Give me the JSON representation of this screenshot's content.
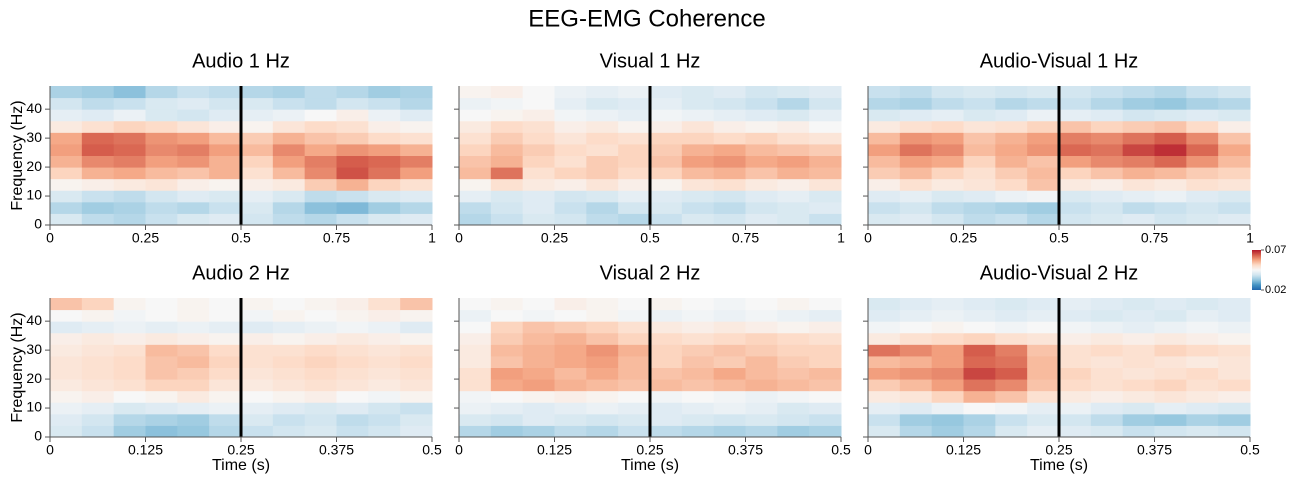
{
  "title": "EEG-EMG Coherence",
  "colorbar": {
    "clim": [
      0.02,
      0.07
    ],
    "ticks": [
      0.07,
      0.02
    ],
    "colors": [
      "#2166ac",
      "#4393c3",
      "#92c5de",
      "#d1e5f0",
      "#f7f7f7",
      "#fddbc7",
      "#f4a582",
      "#d6604d",
      "#b2182b"
    ]
  },
  "chart_data": [
    {
      "type": "heatmap",
      "title": "Audio 1 Hz",
      "ylabel": "Frequency (Hz)",
      "show_ytick_labels": true,
      "xlim": [
        0,
        1
      ],
      "xticks": [
        0,
        0.25,
        0.5,
        0.75,
        1
      ],
      "ylim": [
        0,
        48
      ],
      "yticks": [
        0,
        10,
        20,
        30,
        40
      ],
      "vline": 0.5,
      "values": [
        [
          0.04,
          0.037,
          0.036,
          0.038,
          0.04,
          0.041,
          0.039,
          0.037,
          0.036,
          0.038,
          0.04,
          0.041
        ],
        [
          0.036,
          0.034,
          0.035,
          0.037,
          0.036,
          0.038,
          0.04,
          0.036,
          0.032,
          0.031,
          0.034,
          0.036
        ],
        [
          0.04,
          0.038,
          0.037,
          0.039,
          0.041,
          0.04,
          0.042,
          0.04,
          0.037,
          0.038,
          0.04,
          0.041
        ],
        [
          0.046,
          0.047,
          0.048,
          0.049,
          0.047,
          0.046,
          0.047,
          0.048,
          0.053,
          0.056,
          0.052,
          0.05
        ],
        [
          0.052,
          0.056,
          0.057,
          0.055,
          0.054,
          0.056,
          0.05,
          0.055,
          0.06,
          0.065,
          0.062,
          0.058
        ],
        [
          0.056,
          0.06,
          0.061,
          0.058,
          0.059,
          0.056,
          0.052,
          0.058,
          0.061,
          0.064,
          0.063,
          0.061
        ],
        [
          0.058,
          0.064,
          0.063,
          0.06,
          0.061,
          0.058,
          0.055,
          0.06,
          0.057,
          0.059,
          0.058,
          0.056
        ],
        [
          0.057,
          0.063,
          0.062,
          0.059,
          0.058,
          0.055,
          0.053,
          0.056,
          0.054,
          0.053,
          0.051,
          0.05
        ],
        [
          0.048,
          0.05,
          0.052,
          0.051,
          0.049,
          0.047,
          0.046,
          0.049,
          0.051,
          0.05,
          0.047,
          0.046
        ],
        [
          0.042,
          0.041,
          0.043,
          0.04,
          0.039,
          0.041,
          0.042,
          0.043,
          0.045,
          0.047,
          0.043,
          0.041
        ],
        [
          0.039,
          0.037,
          0.038,
          0.04,
          0.041,
          0.039,
          0.04,
          0.038,
          0.037,
          0.039,
          0.038,
          0.036
        ],
        [
          0.035,
          0.034,
          0.032,
          0.036,
          0.038,
          0.037,
          0.036,
          0.035,
          0.037,
          0.036,
          0.034,
          0.035
        ]
      ]
    },
    {
      "type": "heatmap",
      "title": "Visual 1 Hz",
      "show_ytick_labels": false,
      "xlim": [
        0,
        1
      ],
      "xticks": [
        0,
        0.25,
        0.5,
        0.75,
        1
      ],
      "ylim": [
        0,
        48
      ],
      "yticks": [
        0,
        10,
        20,
        30,
        40
      ],
      "vline": 0.5,
      "values": [
        [
          0.036,
          0.038,
          0.04,
          0.039,
          0.037,
          0.036,
          0.038,
          0.04,
          0.039,
          0.041,
          0.04,
          0.038
        ],
        [
          0.037,
          0.039,
          0.041,
          0.038,
          0.036,
          0.039,
          0.04,
          0.038,
          0.037,
          0.039,
          0.04,
          0.041
        ],
        [
          0.042,
          0.04,
          0.041,
          0.039,
          0.04,
          0.042,
          0.041,
          0.04,
          0.039,
          0.041,
          0.042,
          0.04
        ],
        [
          0.046,
          0.05,
          0.048,
          0.047,
          0.049,
          0.047,
          0.046,
          0.049,
          0.05,
          0.048,
          0.047,
          0.049
        ],
        [
          0.055,
          0.062,
          0.05,
          0.052,
          0.053,
          0.051,
          0.052,
          0.055,
          0.056,
          0.054,
          0.056,
          0.055
        ],
        [
          0.054,
          0.056,
          0.052,
          0.05,
          0.053,
          0.052,
          0.054,
          0.058,
          0.059,
          0.057,
          0.058,
          0.056
        ],
        [
          0.052,
          0.055,
          0.053,
          0.051,
          0.05,
          0.052,
          0.053,
          0.056,
          0.057,
          0.055,
          0.054,
          0.053
        ],
        [
          0.05,
          0.053,
          0.051,
          0.049,
          0.051,
          0.05,
          0.052,
          0.052,
          0.051,
          0.052,
          0.05,
          0.049
        ],
        [
          0.048,
          0.051,
          0.05,
          0.047,
          0.048,
          0.046,
          0.047,
          0.049,
          0.047,
          0.046,
          0.047,
          0.045
        ],
        [
          0.045,
          0.046,
          0.047,
          0.044,
          0.043,
          0.042,
          0.044,
          0.043,
          0.042,
          0.041,
          0.04,
          0.042
        ],
        [
          0.043,
          0.044,
          0.045,
          0.042,
          0.04,
          0.041,
          0.042,
          0.04,
          0.039,
          0.038,
          0.036,
          0.039
        ],
        [
          0.046,
          0.047,
          0.045,
          0.043,
          0.042,
          0.043,
          0.041,
          0.04,
          0.041,
          0.039,
          0.04,
          0.041
        ]
      ]
    },
    {
      "type": "heatmap",
      "title": "Audio-Visual 1 Hz",
      "show_ytick_labels": false,
      "xlim": [
        0,
        1
      ],
      "xticks": [
        0,
        0.25,
        0.5,
        0.75,
        1
      ],
      "ylim": [
        0,
        48
      ],
      "yticks": [
        0,
        10,
        20,
        30,
        40
      ],
      "vline": 0.5,
      "values": [
        [
          0.04,
          0.041,
          0.039,
          0.037,
          0.038,
          0.036,
          0.039,
          0.04,
          0.041,
          0.039,
          0.04,
          0.041
        ],
        [
          0.038,
          0.039,
          0.037,
          0.036,
          0.035,
          0.034,
          0.038,
          0.039,
          0.037,
          0.038,
          0.039,
          0.038
        ],
        [
          0.041,
          0.042,
          0.04,
          0.041,
          0.043,
          0.044,
          0.04,
          0.041,
          0.042,
          0.043,
          0.041,
          0.04
        ],
        [
          0.047,
          0.05,
          0.048,
          0.049,
          0.051,
          0.054,
          0.048,
          0.047,
          0.049,
          0.048,
          0.05,
          0.049
        ],
        [
          0.053,
          0.055,
          0.052,
          0.05,
          0.053,
          0.055,
          0.052,
          0.054,
          0.056,
          0.055,
          0.053,
          0.052
        ],
        [
          0.055,
          0.058,
          0.057,
          0.052,
          0.056,
          0.054,
          0.058,
          0.06,
          0.061,
          0.063,
          0.059,
          0.055
        ],
        [
          0.058,
          0.062,
          0.06,
          0.055,
          0.057,
          0.059,
          0.063,
          0.062,
          0.066,
          0.068,
          0.063,
          0.057
        ],
        [
          0.055,
          0.059,
          0.058,
          0.054,
          0.056,
          0.058,
          0.061,
          0.06,
          0.062,
          0.064,
          0.06,
          0.054
        ],
        [
          0.048,
          0.05,
          0.051,
          0.049,
          0.05,
          0.052,
          0.054,
          0.052,
          0.053,
          0.054,
          0.051,
          0.047
        ],
        [
          0.04,
          0.041,
          0.042,
          0.04,
          0.041,
          0.043,
          0.042,
          0.041,
          0.039,
          0.04,
          0.041,
          0.04
        ],
        [
          0.036,
          0.035,
          0.037,
          0.038,
          0.036,
          0.037,
          0.038,
          0.036,
          0.034,
          0.033,
          0.035,
          0.036
        ],
        [
          0.038,
          0.037,
          0.039,
          0.04,
          0.039,
          0.04,
          0.039,
          0.038,
          0.037,
          0.036,
          0.038,
          0.039
        ]
      ]
    },
    {
      "type": "heatmap",
      "title": "Audio 2 Hz",
      "ylabel": "Frequency (Hz)",
      "xlabel": "Time (s)",
      "show_ytick_labels": true,
      "xlim": [
        0,
        0.5
      ],
      "xticks": [
        0,
        0.125,
        0.25,
        0.375,
        0.5
      ],
      "ylim": [
        0,
        48
      ],
      "yticks": [
        0,
        10,
        20,
        30,
        40
      ],
      "vline": 0.25,
      "values": [
        [
          0.04,
          0.038,
          0.034,
          0.032,
          0.033,
          0.036,
          0.038,
          0.039,
          0.04,
          0.038,
          0.039,
          0.041
        ],
        [
          0.041,
          0.039,
          0.036,
          0.035,
          0.034,
          0.037,
          0.04,
          0.038,
          0.039,
          0.037,
          0.038,
          0.04
        ],
        [
          0.043,
          0.042,
          0.04,
          0.041,
          0.042,
          0.043,
          0.042,
          0.041,
          0.04,
          0.041,
          0.039,
          0.038
        ],
        [
          0.046,
          0.047,
          0.045,
          0.046,
          0.048,
          0.046,
          0.045,
          0.046,
          0.047,
          0.045,
          0.044,
          0.046
        ],
        [
          0.048,
          0.049,
          0.05,
          0.052,
          0.052,
          0.049,
          0.048,
          0.049,
          0.05,
          0.049,
          0.048,
          0.049
        ],
        [
          0.049,
          0.05,
          0.051,
          0.054,
          0.053,
          0.051,
          0.049,
          0.05,
          0.051,
          0.05,
          0.049,
          0.05
        ],
        [
          0.049,
          0.05,
          0.051,
          0.054,
          0.055,
          0.052,
          0.05,
          0.051,
          0.052,
          0.051,
          0.05,
          0.051
        ],
        [
          0.048,
          0.049,
          0.05,
          0.055,
          0.054,
          0.051,
          0.05,
          0.05,
          0.051,
          0.05,
          0.049,
          0.05
        ],
        [
          0.047,
          0.048,
          0.047,
          0.048,
          0.047,
          0.046,
          0.047,
          0.046,
          0.047,
          0.048,
          0.047,
          0.046
        ],
        [
          0.041,
          0.042,
          0.043,
          0.042,
          0.043,
          0.042,
          0.041,
          0.042,
          0.043,
          0.044,
          0.043,
          0.041
        ],
        [
          0.045,
          0.046,
          0.044,
          0.045,
          0.046,
          0.045,
          0.044,
          0.046,
          0.045,
          0.046,
          0.047,
          0.046
        ],
        [
          0.054,
          0.052,
          0.046,
          0.045,
          0.046,
          0.045,
          0.046,
          0.045,
          0.046,
          0.047,
          0.05,
          0.054
        ]
      ]
    },
    {
      "type": "heatmap",
      "title": "Visual 2 Hz",
      "xlabel": "Time (s)",
      "show_ytick_labels": false,
      "xlim": [
        0,
        0.5
      ],
      "xticks": [
        0,
        0.125,
        0.25,
        0.375,
        0.5
      ],
      "ylim": [
        0,
        48
      ],
      "yticks": [
        0,
        10,
        20,
        30,
        40
      ],
      "vline": 0.25,
      "values": [
        [
          0.036,
          0.034,
          0.035,
          0.037,
          0.036,
          0.038,
          0.037,
          0.036,
          0.035,
          0.036,
          0.034,
          0.035
        ],
        [
          0.04,
          0.039,
          0.041,
          0.04,
          0.039,
          0.04,
          0.041,
          0.04,
          0.039,
          0.04,
          0.039,
          0.038
        ],
        [
          0.043,
          0.042,
          0.041,
          0.042,
          0.043,
          0.042,
          0.041,
          0.042,
          0.043,
          0.042,
          0.04,
          0.041
        ],
        [
          0.044,
          0.045,
          0.046,
          0.047,
          0.046,
          0.045,
          0.044,
          0.045,
          0.044,
          0.043,
          0.044,
          0.045
        ],
        [
          0.05,
          0.057,
          0.058,
          0.056,
          0.055,
          0.054,
          0.055,
          0.054,
          0.055,
          0.056,
          0.055,
          0.054
        ],
        [
          0.05,
          0.058,
          0.057,
          0.055,
          0.057,
          0.055,
          0.054,
          0.055,
          0.057,
          0.055,
          0.054,
          0.055
        ],
        [
          0.048,
          0.054,
          0.056,
          0.057,
          0.058,
          0.055,
          0.052,
          0.054,
          0.053,
          0.055,
          0.053,
          0.052
        ],
        [
          0.048,
          0.055,
          0.056,
          0.057,
          0.059,
          0.056,
          0.052,
          0.053,
          0.054,
          0.053,
          0.052,
          0.052
        ],
        [
          0.047,
          0.053,
          0.055,
          0.056,
          0.054,
          0.052,
          0.051,
          0.05,
          0.051,
          0.052,
          0.051,
          0.05
        ],
        [
          0.045,
          0.052,
          0.054,
          0.053,
          0.052,
          0.05,
          0.048,
          0.047,
          0.048,
          0.047,
          0.046,
          0.047
        ],
        [
          0.043,
          0.045,
          0.044,
          0.045,
          0.046,
          0.044,
          0.043,
          0.044,
          0.043,
          0.044,
          0.043,
          0.042
        ],
        [
          0.045,
          0.046,
          0.045,
          0.047,
          0.046,
          0.045,
          0.046,
          0.045,
          0.044,
          0.045,
          0.046,
          0.045
        ]
      ]
    },
    {
      "type": "heatmap",
      "title": "Audio-Visual 2 Hz",
      "xlabel": "Time (s)",
      "show_ytick_labels": false,
      "xlim": [
        0,
        0.5
      ],
      "xticks": [
        0,
        0.125,
        0.25,
        0.375,
        0.5
      ],
      "ylim": [
        0,
        48
      ],
      "yticks": [
        0,
        10,
        20,
        30,
        40
      ],
      "vline": 0.25,
      "values": [
        [
          0.04,
          0.036,
          0.034,
          0.036,
          0.04,
          0.042,
          0.041,
          0.04,
          0.038,
          0.039,
          0.04,
          0.039
        ],
        [
          0.038,
          0.034,
          0.033,
          0.035,
          0.038,
          0.04,
          0.039,
          0.037,
          0.034,
          0.033,
          0.035,
          0.034
        ],
        [
          0.042,
          0.041,
          0.043,
          0.045,
          0.044,
          0.042,
          0.043,
          0.041,
          0.04,
          0.042,
          0.041,
          0.04
        ],
        [
          0.048,
          0.049,
          0.052,
          0.056,
          0.054,
          0.05,
          0.048,
          0.047,
          0.048,
          0.049,
          0.048,
          0.047
        ],
        [
          0.053,
          0.055,
          0.058,
          0.062,
          0.06,
          0.054,
          0.051,
          0.05,
          0.051,
          0.052,
          0.05,
          0.051
        ],
        [
          0.058,
          0.059,
          0.06,
          0.066,
          0.064,
          0.055,
          0.052,
          0.05,
          0.049,
          0.05,
          0.051,
          0.049
        ],
        [
          0.055,
          0.056,
          0.058,
          0.063,
          0.062,
          0.055,
          0.05,
          0.049,
          0.05,
          0.049,
          0.048,
          0.049
        ],
        [
          0.062,
          0.06,
          0.058,
          0.064,
          0.061,
          0.054,
          0.05,
          0.051,
          0.05,
          0.052,
          0.051,
          0.05
        ],
        [
          0.048,
          0.05,
          0.051,
          0.052,
          0.05,
          0.049,
          0.047,
          0.048,
          0.047,
          0.048,
          0.047,
          0.046
        ],
        [
          0.044,
          0.045,
          0.046,
          0.045,
          0.044,
          0.045,
          0.044,
          0.043,
          0.042,
          0.043,
          0.044,
          0.043
        ],
        [
          0.041,
          0.042,
          0.043,
          0.042,
          0.041,
          0.042,
          0.041,
          0.04,
          0.041,
          0.04,
          0.042,
          0.041
        ],
        [
          0.04,
          0.041,
          0.042,
          0.041,
          0.04,
          0.041,
          0.042,
          0.041,
          0.04,
          0.041,
          0.04,
          0.041
        ]
      ]
    }
  ]
}
